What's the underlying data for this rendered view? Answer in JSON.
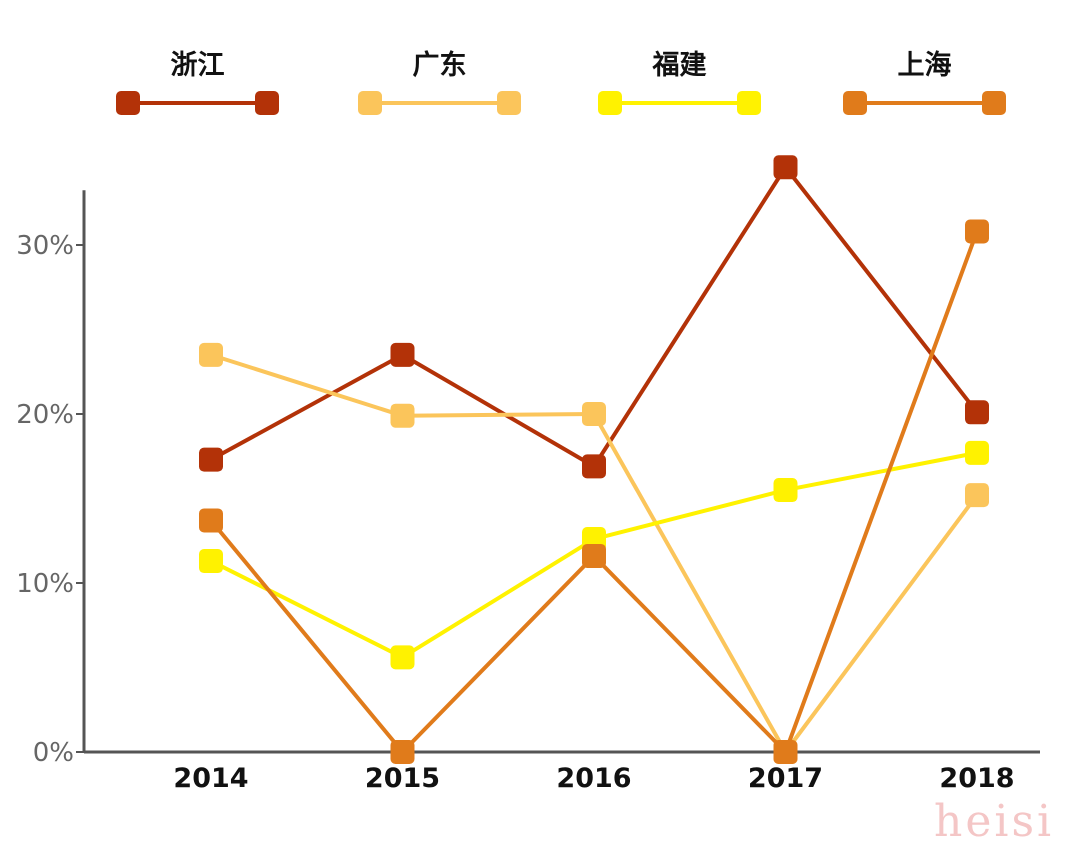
{
  "chart_data": {
    "type": "line",
    "categories": [
      "2014",
      "2015",
      "2016",
      "2017",
      "2018"
    ],
    "series": [
      {
        "name": "浙江",
        "color": "#b33208",
        "values": [
          17.3,
          23.5,
          16.9,
          34.6,
          20.1
        ]
      },
      {
        "name": "广东",
        "color": "#fbc55b",
        "values": [
          23.5,
          19.9,
          20.0,
          0.0,
          15.2
        ]
      },
      {
        "name": "福建",
        "color": "#fff200",
        "values": [
          11.3,
          5.6,
          12.6,
          15.5,
          17.7
        ]
      },
      {
        "name": "上海",
        "color": "#e07b1b",
        "values": [
          13.7,
          0.0,
          11.6,
          0.0,
          30.8
        ]
      }
    ],
    "y_ticks": [
      "0%",
      "10%",
      "20%",
      "30%"
    ],
    "y_tick_values": [
      0,
      10,
      20,
      30
    ],
    "ylim": [
      0,
      33
    ],
    "grid": false,
    "legend_position": "top",
    "marker": "rounded-square"
  },
  "watermark": "heisi"
}
